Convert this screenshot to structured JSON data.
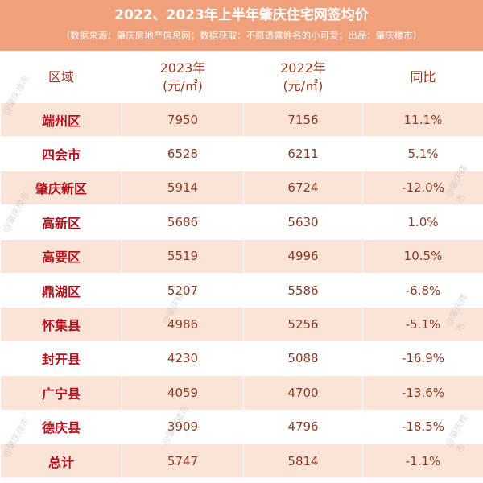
{
  "title": "2022、2023年上半年肇庆住宅网签均价",
  "subtitle": "（数据来源：肇庆房地产信息网；数据获取：不愿透露姓名的小可爱；出品：肇庆楼市）",
  "headers": {
    "region": "区域",
    "y2023_line1": "2023年",
    "y2023_line2": "(元/㎡)",
    "y2022_line1": "2022年",
    "y2022_line2": "(元/㎡)",
    "yoy": "同比"
  },
  "rows": [
    {
      "region": "端州区",
      "y2023": "7950",
      "y2022": "7156",
      "yoy": "11.1%"
    },
    {
      "region": "四会市",
      "y2023": "6528",
      "y2022": "6211",
      "yoy": "5.1%"
    },
    {
      "region": "肇庆新区",
      "y2023": "5914",
      "y2022": "6724",
      "yoy": "-12.0%"
    },
    {
      "region": "高新区",
      "y2023": "5686",
      "y2022": "5630",
      "yoy": "1.0%"
    },
    {
      "region": "高要区",
      "y2023": "5519",
      "y2022": "4996",
      "yoy": "10.5%"
    },
    {
      "region": "鼎湖区",
      "y2023": "5207",
      "y2022": "5586",
      "yoy": "-6.8%"
    },
    {
      "region": "怀集县",
      "y2023": "4986",
      "y2022": "5256",
      "yoy": "-5.1%"
    },
    {
      "region": "封开县",
      "y2023": "4230",
      "y2022": "5088",
      "yoy": "-16.9%"
    },
    {
      "region": "广宁县",
      "y2023": "4059",
      "y2022": "4700",
      "yoy": "-13.6%"
    },
    {
      "region": "德庆县",
      "y2023": "3909",
      "y2022": "4796",
      "yoy": "-18.5%"
    },
    {
      "region": "总计",
      "y2023": "5747",
      "y2022": "5814",
      "yoy": "-1.1%"
    }
  ],
  "watermark": "@肇庆楼市",
  "colors": {
    "banner": "#f0a07a",
    "row_tint": "#fbe3d8",
    "region_text": "#b3121d",
    "value_text": "#8a3a20"
  }
}
